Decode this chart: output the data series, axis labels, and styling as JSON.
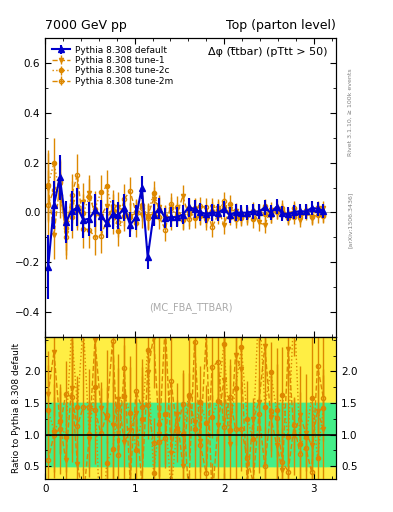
{
  "title_left": "7000 GeV pp",
  "title_right": "Top (parton level)",
  "plot_label": "Δφ (t̅tbar) (pTtt > 50)",
  "watermark": "(MC_FBA_TTBAR)",
  "right_label_top": "Rivet 3.1.10, ≥ 100k events",
  "right_label_bottom": "[arXiv:1306.3436]",
  "ylabel_ratio": "Ratio to Pythia 8.308 default",
  "legend": [
    {
      "label": "Pythia 8.308 default",
      "color": "#0000cc",
      "marker": "^",
      "linestyle": "-",
      "filled": true
    },
    {
      "label": "Pythia 8.308 tune-1",
      "color": "#dd8800",
      "marker": "v",
      "linestyle": "--",
      "filled": true
    },
    {
      "label": "Pythia 8.308 tune-2c",
      "color": "#dd8800",
      "marker": "o",
      "linestyle": ":",
      "filled": true
    },
    {
      "label": "Pythia 8.308 tune-2m",
      "color": "#dd8800",
      "marker": "o",
      "linestyle": "--",
      "filled": false
    }
  ],
  "xlim": [
    0,
    3.25
  ],
  "ylim_main": [
    -0.5,
    0.7
  ],
  "ylim_ratio": [
    0.3,
    2.55
  ],
  "yticks_main": [
    -0.4,
    -0.2,
    0.0,
    0.2,
    0.4,
    0.6
  ],
  "yticks_ratio": [
    0.5,
    1.0,
    1.5,
    2.0
  ],
  "xticks": [
    0,
    1,
    2,
    3
  ],
  "band_green": "#44ee88",
  "band_yellow": "#ffee44",
  "main_bg": "#ffffff",
  "ratio_bg": "#ffffff"
}
